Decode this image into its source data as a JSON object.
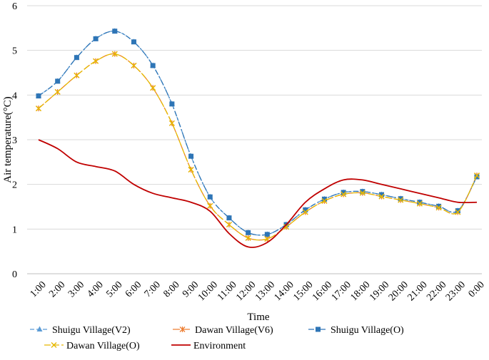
{
  "chart_data": {
    "type": "line",
    "title": "",
    "xlabel": "Time",
    "ylabel": "Air temperature(°C)",
    "ylim": [
      0,
      6
    ],
    "yticks": [
      0,
      1,
      2,
      3,
      4,
      5,
      6
    ],
    "grid": true,
    "legend_position": "bottom",
    "categories": [
      "1:00",
      "2:00",
      "3:00",
      "4:00",
      "5:00",
      "6:00",
      "7:00",
      "8:00",
      "9:00",
      "10:00",
      "11:00",
      "12:00",
      "13:00",
      "14:00",
      "15:00",
      "16:00",
      "17:00",
      "18:00",
      "19:00",
      "20:00",
      "21:00",
      "22:00",
      "23:00",
      "0:00"
    ],
    "series": [
      {
        "name": "Shuigu Village(V2)",
        "color": "#5b9bd5",
        "marker": "triangle",
        "dash": "6 3",
        "values": [
          3.98,
          4.31,
          4.84,
          5.26,
          5.43,
          5.19,
          4.66,
          3.8,
          2.63,
          1.72,
          1.25,
          0.92,
          0.88,
          1.1,
          1.43,
          1.67,
          1.82,
          1.84,
          1.77,
          1.68,
          1.6,
          1.51,
          1.41,
          2.17
        ]
      },
      {
        "name": "Dawan Village(V6)",
        "color": "#ed7d31",
        "marker": "star",
        "dash": "10 4",
        "values": [
          3.7,
          4.07,
          4.44,
          4.76,
          4.92,
          4.66,
          4.16,
          3.37,
          2.33,
          1.52,
          1.1,
          0.8,
          0.78,
          1.05,
          1.38,
          1.63,
          1.78,
          1.81,
          1.73,
          1.65,
          1.57,
          1.48,
          1.38,
          2.2
        ]
      },
      {
        "name": "Shuigu Village(O)",
        "color": "#2e75b6",
        "marker": "square",
        "dash": "8 3 2 3",
        "values": [
          3.98,
          4.31,
          4.84,
          5.26,
          5.43,
          5.19,
          4.66,
          3.8,
          2.63,
          1.72,
          1.25,
          0.92,
          0.88,
          1.1,
          1.43,
          1.67,
          1.82,
          1.84,
          1.77,
          1.68,
          1.6,
          1.51,
          1.41,
          2.17
        ]
      },
      {
        "name": "Dawan Village(O)",
        "color": "#e6b800",
        "marker": "x",
        "dash": "9 3",
        "values": [
          3.7,
          4.07,
          4.44,
          4.76,
          4.92,
          4.66,
          4.16,
          3.37,
          2.33,
          1.52,
          1.1,
          0.8,
          0.78,
          1.05,
          1.38,
          1.63,
          1.78,
          1.81,
          1.73,
          1.65,
          1.57,
          1.48,
          1.38,
          2.2
        ]
      },
      {
        "name": "Environment",
        "color": "#c00000",
        "marker": "none",
        "dash": "",
        "values": [
          3.0,
          2.8,
          2.5,
          2.4,
          2.3,
          2.0,
          1.8,
          1.7,
          1.6,
          1.4,
          0.9,
          0.6,
          0.7,
          1.1,
          1.6,
          1.9,
          2.1,
          2.1,
          2.0,
          1.9,
          1.8,
          1.7,
          1.6,
          1.6
        ]
      }
    ]
  }
}
